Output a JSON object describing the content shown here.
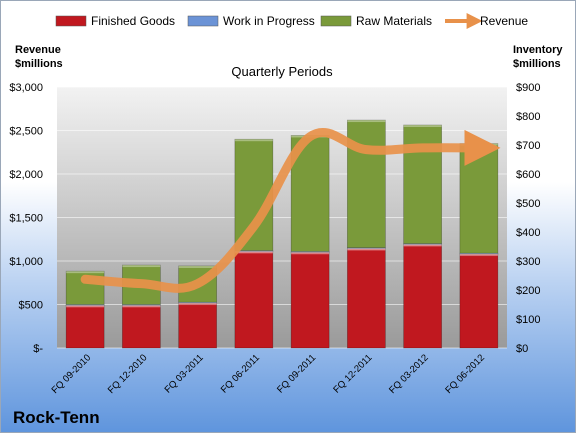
{
  "company": "Rock-Tenn",
  "chart_data": {
    "type": "bar",
    "title": "Quarterly Periods",
    "categories": [
      "FQ 09-2010",
      "FQ 12-2010",
      "FQ 03-2011",
      "FQ 06-2011",
      "FQ 09-2011",
      "FQ 12-2011",
      "FQ 03-2012",
      "FQ 06-2012"
    ],
    "stacked": true,
    "series": [
      {
        "name": "Finished Goods",
        "kind": "bar",
        "axis": "right",
        "color": "#c0181f",
        "values": [
          147,
          147,
          155,
          333,
          330,
          343,
          357,
          324
        ]
      },
      {
        "name": "Work in Progress",
        "kind": "bar",
        "axis": "right",
        "color": "#6b93d6",
        "values": [
          3,
          3,
          3,
          3,
          3,
          3,
          3,
          3
        ]
      },
      {
        "name": "Raw Materials",
        "kind": "bar",
        "axis": "right",
        "color": "#7a9a3a",
        "values": [
          115,
          136,
          125,
          384,
          400,
          440,
          409,
          378
        ]
      },
      {
        "name": "Revenue",
        "kind": "line",
        "axis": "left",
        "color": "#e8914a",
        "values": [
          790,
          740,
          740,
          1400,
          2430,
          2280,
          2300,
          2300
        ]
      }
    ],
    "left_axis": {
      "title_line1": "Revenue",
      "title_line2": "$millions",
      "range": [
        0,
        3000
      ],
      "ticks": [
        0,
        500,
        1000,
        1500,
        2000,
        2500,
        3000
      ],
      "tick_labels": [
        "$-",
        "$500",
        "$1,000",
        "$1,500",
        "$2,000",
        "$2,500",
        "$3,000"
      ]
    },
    "right_axis": {
      "title_line1": "Inventory",
      "title_line2": "$millions",
      "range": [
        0,
        900
      ],
      "ticks": [
        0,
        100,
        200,
        300,
        400,
        500,
        600,
        700,
        800,
        900
      ],
      "tick_labels": [
        "$0",
        "$100",
        "$200",
        "$300",
        "$400",
        "$500",
        "$600",
        "$700",
        "$800",
        "$900"
      ]
    },
    "grid": true,
    "legend_position": "top"
  }
}
